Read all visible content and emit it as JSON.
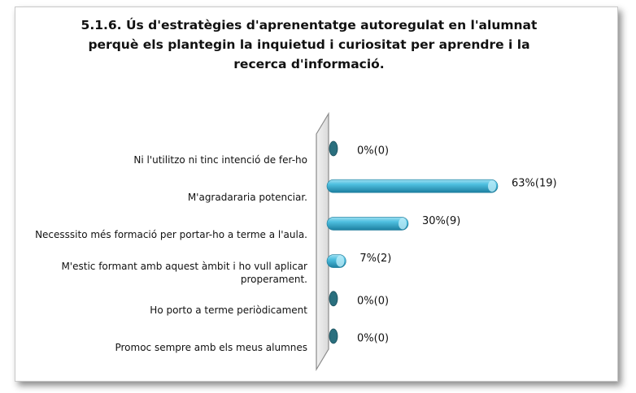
{
  "chart_data": {
    "type": "bar",
    "orientation": "horizontal",
    "title": [
      "5.1.6. Ús d'estratègies d'aprenentatge autoregulat en l'alumnat",
      "perquè els plantegin la inquietud i curiositat per aprendre i la",
      "recerca d'informació."
    ],
    "categories": [
      "Ni l'utilitzo ni tinc intenció de fer-ho",
      "M'agradararia potenciar.",
      "Necesssito més formació per portar-ho a terme a l'aula.",
      "M'estic formant amb aquest àmbit i ho vull aplicar properament.",
      "Ho porto a terme periòdicament",
      "Promoc sempre amb els meus alumnes"
    ],
    "values": [
      0,
      63,
      30,
      7,
      0,
      0
    ],
    "value_labels": [
      "0%(0)",
      "63%(19)",
      "30%(9)",
      "7%(2)",
      "0%(0)",
      "0%(0)"
    ],
    "color": "#3fb2d6"
  }
}
